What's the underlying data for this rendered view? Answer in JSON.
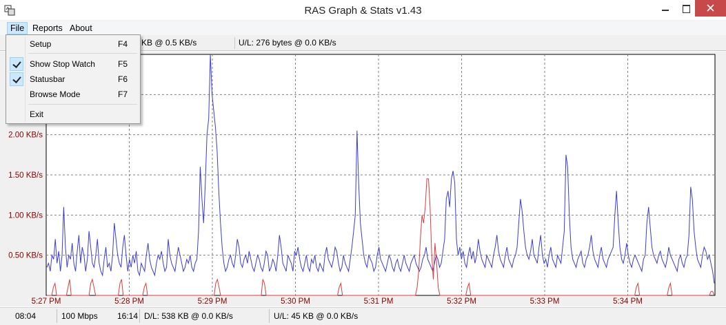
{
  "window": {
    "title": "RAS Graph & Stats v1.43"
  },
  "menubar": {
    "file": "File",
    "reports": "Reports",
    "about": "About"
  },
  "file_menu": {
    "items": [
      {
        "label": "Setup",
        "shortcut": "F4",
        "checked": false
      },
      {
        "label": "Show Stop Watch",
        "shortcut": "F5",
        "checked": true
      },
      {
        "label": "Statusbar",
        "shortcut": "F6",
        "checked": true
      },
      {
        "label": "Browse Mode",
        "shortcut": "F7",
        "checked": false
      },
      {
        "label": "Exit",
        "shortcut": "",
        "checked": false
      }
    ]
  },
  "top_stats": {
    "download_partial": "KB @ 0.5 KB/s",
    "upload": "U/L: 276 bytes @ 0.0 KB/s"
  },
  "status_bar": {
    "time": "08:04",
    "speed": "100 Mbps",
    "duration": "16:14",
    "download": "D/L: 538 KB @ 0.0 KB/s",
    "upload": "U/L: 45 KB @ 0.0 KB/s"
  },
  "colors": {
    "download_line": "#3b3bdb",
    "upload_line": "#e03b3b",
    "axis_label": "#8b0000",
    "grid": "#808080"
  },
  "chart_data": {
    "type": "line",
    "y_tick_labels": [
      "0.50 KB/s",
      "1.00 KB/s",
      "1.50 KB/s",
      "2.00 KB/s"
    ],
    "y_ticks": [
      0.5,
      1.0,
      1.5,
      2.0
    ],
    "ylim": [
      0,
      3.0
    ],
    "x_tick_labels": [
      "5:27 PM",
      "5:28 PM",
      "5:29 PM",
      "5:30 PM",
      "5:31 PM",
      "5:32 PM",
      "5:33 PM",
      "5:34 PM"
    ],
    "grid": true,
    "series": [
      {
        "color": "#3b3bdb",
        "values": [
          0.35,
          0.4,
          0.3,
          0.5,
          0.45,
          0.7,
          0.4,
          0.55,
          0.3,
          0.5,
          1.1,
          0.6,
          0.35,
          0.5,
          0.45,
          0.65,
          0.4,
          0.3,
          0.55,
          0.75,
          0.4,
          0.6,
          0.5,
          0.3,
          0.45,
          0.8,
          0.6,
          0.4,
          0.35,
          0.5,
          0.7,
          0.4,
          0.3,
          0.25,
          0.45,
          0.6,
          0.35,
          0.4,
          0.3,
          0.5,
          0.9,
          0.7,
          0.5,
          0.4,
          0.35,
          0.6,
          0.75,
          0.5,
          0.3,
          0.45,
          0.35,
          0.5,
          0.4,
          0.55,
          0.3,
          0.25,
          0.4,
          0.35,
          0.3,
          0.5,
          0.65,
          0.45,
          0.35,
          0.3,
          0.25,
          0.4,
          0.5,
          0.45,
          0.55,
          0.4,
          0.3,
          0.35,
          0.7,
          0.5,
          0.4,
          0.35,
          0.3,
          0.45,
          0.6,
          0.5,
          0.4,
          0.3,
          0.35,
          0.45,
          0.4,
          0.5,
          0.35,
          0.3,
          0.4,
          0.45,
          0.8,
          1.6,
          1.2,
          0.9,
          1.4,
          2.0,
          2.2,
          3.0,
          2.5,
          2.3,
          2.1,
          1.8,
          1.3,
          0.9,
          0.6,
          0.4,
          0.3,
          0.35,
          0.45,
          0.5,
          0.4,
          0.35,
          0.5,
          0.7,
          0.6,
          0.4,
          0.35,
          0.45,
          0.5,
          0.4,
          0.55,
          0.45,
          0.35,
          0.3,
          0.4,
          0.5,
          0.45,
          0.35,
          0.3,
          0.4,
          0.55,
          0.5,
          0.3,
          0.35,
          0.45,
          0.4,
          0.3,
          0.5,
          0.75,
          0.6,
          0.4,
          0.35,
          0.3,
          0.5,
          0.45,
          0.4,
          0.3,
          0.55,
          0.5,
          0.6,
          0.45,
          0.35,
          0.3,
          0.4,
          0.5,
          0.35,
          0.3,
          0.45,
          0.4,
          0.5,
          0.35,
          0.3,
          0.4,
          0.35,
          0.3,
          0.5,
          0.6,
          0.45,
          0.4,
          0.35,
          0.45,
          0.6,
          0.55,
          0.4,
          0.3,
          0.35,
          0.5,
          0.4,
          0.35,
          0.3,
          0.45,
          0.6,
          0.8,
          1.0,
          2.05,
          1.4,
          0.9,
          0.7,
          0.5,
          0.4,
          0.35,
          0.5,
          0.45,
          0.4,
          0.3,
          0.35,
          0.5,
          0.6,
          0.45,
          0.4,
          0.35,
          0.3,
          0.4,
          0.5,
          0.45,
          0.35,
          0.3,
          0.4,
          0.45,
          0.35,
          0.3,
          0.4,
          0.5,
          0.4,
          0.35,
          0.3,
          0.4,
          0.45,
          0.5,
          0.4,
          0.35,
          0.3,
          0.35,
          0.45,
          0.5,
          0.6,
          0.45,
          0.4,
          0.35,
          0.3,
          0.4,
          0.5,
          0.45,
          0.35,
          0.4,
          0.55,
          0.7,
          1.2,
          1.3,
          1.1,
          1.45,
          1.55,
          1.4,
          0.7,
          0.5,
          0.6,
          0.45,
          0.55,
          0.4,
          0.35,
          0.5,
          0.6,
          0.45,
          0.55,
          0.4,
          0.5,
          0.7,
          0.55,
          0.45,
          0.4,
          0.35,
          0.5,
          0.45,
          0.4,
          0.35,
          0.5,
          0.6,
          0.75,
          0.55,
          0.45,
          0.4,
          0.35,
          0.5,
          0.6,
          0.45,
          0.4,
          0.35,
          0.45,
          0.5,
          0.6,
          0.9,
          1.2,
          1.05,
          0.8,
          0.6,
          0.5,
          0.45,
          0.55,
          0.7,
          0.5,
          0.45,
          0.4,
          0.6,
          0.75,
          0.5,
          0.4,
          0.45,
          0.35,
          0.5,
          0.6,
          0.45,
          0.4,
          0.35,
          0.5,
          0.45,
          0.4,
          0.6,
          0.8,
          1.75,
          1.6,
          1.0,
          0.6,
          0.45,
          0.4,
          0.35,
          0.45,
          0.5,
          0.55,
          0.4,
          0.35,
          0.45,
          0.5,
          0.6,
          0.75,
          0.55,
          0.45,
          0.4,
          0.35,
          0.5,
          0.6,
          0.45,
          0.4,
          0.35,
          0.45,
          0.5,
          0.55,
          0.6,
          1.0,
          1.3,
          0.9,
          0.6,
          0.45,
          0.4,
          0.5,
          0.65,
          0.5,
          0.4,
          0.35,
          0.45,
          0.5,
          0.45,
          0.4,
          0.35,
          0.3,
          0.45,
          0.5,
          0.9,
          1.1,
          0.85,
          0.6,
          0.5,
          0.45,
          0.4,
          0.5,
          0.55,
          0.45,
          0.4,
          0.35,
          0.45,
          0.6,
          0.5,
          0.45,
          0.4,
          0.35,
          0.3,
          0.45,
          0.5,
          0.4,
          0.35,
          0.45,
          0.5,
          0.75,
          1.35,
          1.2,
          0.8,
          0.6,
          0.45,
          0.4,
          0.35,
          0.5,
          0.6,
          0.55,
          0.45,
          0.5,
          0.4,
          0.3,
          0.15
        ],
        "color_note": "download"
      },
      {
        "color": "#e03b3b",
        "values": [
          0,
          0,
          0,
          0,
          0.1,
          0.15,
          0,
          0,
          0,
          0,
          0,
          0,
          0,
          0.1,
          0.2,
          0,
          0,
          0,
          0,
          0,
          0,
          0,
          0,
          0,
          0,
          0,
          0,
          0.15,
          0.2,
          0.1,
          0,
          0,
          0,
          0,
          0,
          0,
          0,
          0,
          0,
          0,
          0,
          0,
          0,
          0,
          0,
          0.15,
          0.2,
          0,
          0,
          0,
          0,
          0,
          0,
          0,
          0,
          0,
          0,
          0,
          0,
          0,
          0.1,
          0.15,
          0,
          0,
          0,
          0,
          0,
          0,
          0,
          0,
          0,
          0,
          0,
          0,
          0,
          0,
          0,
          0,
          0,
          0,
          0,
          0,
          0,
          0,
          0,
          0,
          0,
          0,
          0,
          0,
          0,
          0,
          0,
          0,
          0,
          0,
          0,
          0,
          0,
          0,
          0,
          0,
          0,
          0,
          0.15,
          0.2,
          0.1,
          0,
          0,
          0,
          0,
          0,
          0,
          0,
          0,
          0,
          0,
          0,
          0,
          0,
          0,
          0,
          0,
          0,
          0,
          0,
          0,
          0,
          0,
          0,
          0,
          0,
          0,
          0.2,
          0.15,
          0,
          0,
          0,
          0,
          0,
          0,
          0,
          0,
          0,
          0,
          0,
          0,
          0,
          0,
          0,
          0,
          0,
          0,
          0,
          0,
          0,
          0,
          0,
          0,
          0,
          0,
          0,
          0,
          0,
          0,
          0,
          0,
          0,
          0,
          0,
          0,
          0,
          0,
          0,
          0,
          0,
          0,
          0,
          0,
          0,
          0.1,
          0.15,
          0,
          0,
          0,
          0,
          0,
          0,
          0,
          0,
          0,
          0,
          0,
          0,
          0,
          0,
          0,
          0,
          0,
          0,
          0,
          0,
          0,
          0,
          0,
          0,
          0,
          0,
          0,
          0,
          0,
          0,
          0,
          0,
          0,
          0,
          0,
          0,
          0,
          0,
          0,
          0,
          0,
          0,
          0,
          0,
          0,
          0,
          0.1,
          0.3,
          0.7,
          1.0,
          0.9,
          1.1,
          1.45,
          1.45,
          1.1,
          0.5,
          0.2,
          0.65,
          0.4,
          0.1,
          0,
          0,
          0,
          0,
          0,
          0,
          0,
          0,
          0,
          0,
          0,
          0,
          0,
          0,
          0,
          0,
          0,
          0.1,
          0.15,
          0,
          0,
          0,
          0,
          0,
          0,
          0,
          0,
          0,
          0,
          0,
          0,
          0,
          0,
          0,
          0,
          0,
          0,
          0,
          0,
          0,
          0,
          0,
          0,
          0,
          0,
          0,
          0,
          0,
          0,
          0,
          0,
          0,
          0,
          0,
          0,
          0,
          0,
          0,
          0,
          0,
          0,
          0,
          0,
          0,
          0,
          0,
          0,
          0,
          0,
          0,
          0,
          0,
          0,
          0,
          0,
          0,
          0,
          0,
          0,
          0,
          0,
          0,
          0,
          0,
          0,
          0,
          0,
          0,
          0,
          0,
          0,
          0,
          0,
          0,
          0,
          0,
          0,
          0,
          0,
          0,
          0,
          0,
          0,
          0,
          0,
          0,
          0,
          0,
          0,
          0,
          0,
          0,
          0,
          0,
          0,
          0,
          0,
          0,
          0,
          0,
          0,
          0.1,
          0.15,
          0,
          0,
          0,
          0,
          0,
          0,
          0,
          0,
          0,
          0,
          0,
          0,
          0,
          0,
          0,
          0,
          0,
          0,
          0.1,
          0.15,
          0,
          0,
          0,
          0,
          0,
          0,
          0,
          0,
          0,
          0,
          0,
          0,
          0,
          0,
          0,
          0,
          0,
          0,
          0,
          0,
          0,
          0,
          0,
          0,
          0.05,
          0.05,
          0
        ],
        "color_note": "upload"
      }
    ]
  }
}
